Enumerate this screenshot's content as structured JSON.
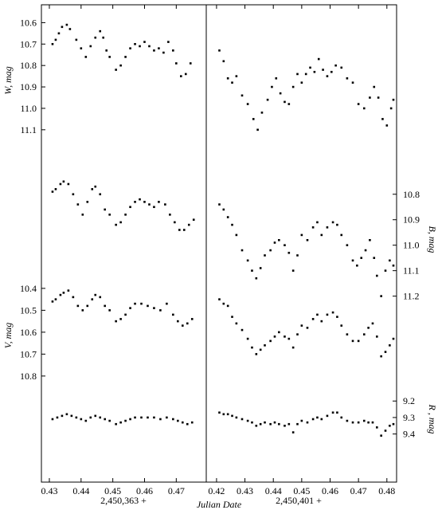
{
  "chart_data": {
    "type": "scatter",
    "xlabel": "Julian Date",
    "panels": [
      {
        "name": "left",
        "date_offset": "2,450,363 +",
        "xlim": [
          0.4285,
          0.4782
        ],
        "xticks": [
          "0.43",
          "0.44",
          "0.45",
          "0.46",
          "0.47"
        ]
      },
      {
        "name": "right",
        "date_offset": "2,450,401 +",
        "xlim": [
          0.4175,
          0.4823
        ],
        "xticks": [
          "0.42",
          "0.43",
          "0.44",
          "0.45",
          "0.46",
          "0.47",
          "0.48"
        ]
      }
    ],
    "series": [
      {
        "name": "W",
        "ylabel": "W, mag",
        "axis_side": "left",
        "ylim": [
          10.565,
          11.175
        ],
        "yticks": [
          "10.6",
          "10.7",
          "10.8",
          "10.9",
          "11.0",
          "11.1"
        ],
        "left": [
          [
            0.431,
            10.7
          ],
          [
            0.432,
            10.68
          ],
          [
            0.433,
            10.65
          ],
          [
            0.434,
            10.62
          ],
          [
            0.4355,
            10.61
          ],
          [
            0.4365,
            10.63
          ],
          [
            0.4385,
            10.68
          ],
          [
            0.44,
            10.72
          ],
          [
            0.4415,
            10.76
          ],
          [
            0.443,
            10.71
          ],
          [
            0.4445,
            10.67
          ],
          [
            0.446,
            10.64
          ],
          [
            0.447,
            10.67
          ],
          [
            0.448,
            10.73
          ],
          [
            0.449,
            10.76
          ],
          [
            0.451,
            10.82
          ],
          [
            0.4525,
            10.8
          ],
          [
            0.454,
            10.76
          ],
          [
            0.4555,
            10.72
          ],
          [
            0.457,
            10.7
          ],
          [
            0.4585,
            10.71
          ],
          [
            0.46,
            10.69
          ],
          [
            0.4615,
            10.71
          ],
          [
            0.463,
            10.73
          ],
          [
            0.4645,
            10.72
          ],
          [
            0.466,
            10.74
          ],
          [
            0.4675,
            10.69
          ],
          [
            0.469,
            10.73
          ],
          [
            0.47,
            10.79
          ],
          [
            0.4715,
            10.85
          ],
          [
            0.473,
            10.84
          ],
          [
            0.4745,
            10.79
          ]
        ],
        "right": [
          [
            0.421,
            10.73
          ],
          [
            0.4225,
            10.78
          ],
          [
            0.424,
            10.86
          ],
          [
            0.4255,
            10.88
          ],
          [
            0.427,
            10.85
          ],
          [
            0.429,
            10.94
          ],
          [
            0.431,
            10.98
          ],
          [
            0.433,
            11.05
          ],
          [
            0.4345,
            11.1
          ],
          [
            0.436,
            11.02
          ],
          [
            0.438,
            10.96
          ],
          [
            0.4395,
            10.9
          ],
          [
            0.441,
            10.86
          ],
          [
            0.4425,
            10.93
          ],
          [
            0.444,
            10.97
          ],
          [
            0.4455,
            10.98
          ],
          [
            0.447,
            10.9
          ],
          [
            0.4485,
            10.84
          ],
          [
            0.45,
            10.88
          ],
          [
            0.4515,
            10.84
          ],
          [
            0.453,
            10.81
          ],
          [
            0.4545,
            10.83
          ],
          [
            0.456,
            10.77
          ],
          [
            0.4575,
            10.82
          ],
          [
            0.459,
            10.85
          ],
          [
            0.4605,
            10.83
          ],
          [
            0.462,
            10.8
          ],
          [
            0.464,
            10.81
          ],
          [
            0.466,
            10.86
          ],
          [
            0.468,
            10.88
          ],
          [
            0.47,
            10.98
          ],
          [
            0.472,
            11.0
          ],
          [
            0.474,
            10.95
          ],
          [
            0.4755,
            10.9
          ],
          [
            0.477,
            10.95
          ],
          [
            0.4785,
            11.05
          ],
          [
            0.48,
            11.08
          ],
          [
            0.4815,
            11.0
          ],
          [
            0.4823,
            10.96
          ]
        ]
      },
      {
        "name": "B",
        "ylabel": "B, mag",
        "axis_side": "right",
        "ylim": [
          10.71,
          11.245
        ],
        "yticks": [
          "10.8",
          "10.9",
          "11.0",
          "11.1",
          "11.2"
        ],
        "left": [
          [
            0.431,
            10.79
          ],
          [
            0.432,
            10.78
          ],
          [
            0.4335,
            10.76
          ],
          [
            0.4345,
            10.75
          ],
          [
            0.436,
            10.76
          ],
          [
            0.4375,
            10.8
          ],
          [
            0.439,
            10.84
          ],
          [
            0.4405,
            10.88
          ],
          [
            0.442,
            10.83
          ],
          [
            0.4435,
            10.78
          ],
          [
            0.4445,
            10.77
          ],
          [
            0.446,
            10.8
          ],
          [
            0.4475,
            10.86
          ],
          [
            0.449,
            10.88
          ],
          [
            0.451,
            10.92
          ],
          [
            0.4525,
            10.91
          ],
          [
            0.454,
            10.88
          ],
          [
            0.4555,
            10.85
          ],
          [
            0.457,
            10.83
          ],
          [
            0.4585,
            10.82
          ],
          [
            0.46,
            10.83
          ],
          [
            0.4615,
            10.84
          ],
          [
            0.463,
            10.85
          ],
          [
            0.4645,
            10.83
          ],
          [
            0.4665,
            10.84
          ],
          [
            0.468,
            10.88
          ],
          [
            0.4695,
            10.91
          ],
          [
            0.471,
            10.94
          ],
          [
            0.4725,
            10.94
          ],
          [
            0.474,
            10.92
          ],
          [
            0.4755,
            10.9
          ]
        ],
        "right": [
          [
            0.421,
            10.84
          ],
          [
            0.4225,
            10.86
          ],
          [
            0.424,
            10.89
          ],
          [
            0.4255,
            10.92
          ],
          [
            0.427,
            10.96
          ],
          [
            0.429,
            11.02
          ],
          [
            0.431,
            11.06
          ],
          [
            0.4325,
            11.1
          ],
          [
            0.434,
            11.13
          ],
          [
            0.4355,
            11.09
          ],
          [
            0.437,
            11.04
          ],
          [
            0.439,
            11.02
          ],
          [
            0.4405,
            10.99
          ],
          [
            0.442,
            10.98
          ],
          [
            0.444,
            11.0
          ],
          [
            0.4455,
            11.03
          ],
          [
            0.447,
            11.1
          ],
          [
            0.4485,
            11.04
          ],
          [
            0.45,
            10.96
          ],
          [
            0.452,
            10.98
          ],
          [
            0.454,
            10.93
          ],
          [
            0.4555,
            10.91
          ],
          [
            0.457,
            10.96
          ],
          [
            0.459,
            10.93
          ],
          [
            0.461,
            10.91
          ],
          [
            0.4625,
            10.92
          ],
          [
            0.464,
            10.96
          ],
          [
            0.466,
            11.0
          ],
          [
            0.468,
            11.06
          ],
          [
            0.4695,
            11.08
          ],
          [
            0.471,
            11.05
          ],
          [
            0.4725,
            11.02
          ],
          [
            0.474,
            10.98
          ],
          [
            0.4755,
            11.05
          ],
          [
            0.4765,
            11.12
          ],
          [
            0.478,
            11.2
          ],
          [
            0.4795,
            11.1
          ],
          [
            0.481,
            11.06
          ],
          [
            0.4823,
            11.08
          ]
        ]
      },
      {
        "name": "V",
        "ylabel": "V, mag",
        "axis_side": "left",
        "ylim": [
          10.375,
          10.855
        ],
        "yticks": [
          "10.4",
          "10.5",
          "10.6",
          "10.7",
          "10.8"
        ],
        "left": [
          [
            0.431,
            10.46
          ],
          [
            0.432,
            10.45
          ],
          [
            0.4335,
            10.43
          ],
          [
            0.4345,
            10.42
          ],
          [
            0.436,
            10.41
          ],
          [
            0.4375,
            10.44
          ],
          [
            0.439,
            10.48
          ],
          [
            0.4405,
            10.5
          ],
          [
            0.442,
            10.48
          ],
          [
            0.4435,
            10.45
          ],
          [
            0.4445,
            10.43
          ],
          [
            0.446,
            10.44
          ],
          [
            0.4475,
            10.48
          ],
          [
            0.449,
            10.5
          ],
          [
            0.451,
            10.55
          ],
          [
            0.4525,
            10.54
          ],
          [
            0.454,
            10.52
          ],
          [
            0.4555,
            10.49
          ],
          [
            0.457,
            10.47
          ],
          [
            0.459,
            10.47
          ],
          [
            0.461,
            10.48
          ],
          [
            0.463,
            10.49
          ],
          [
            0.465,
            10.5
          ],
          [
            0.467,
            10.47
          ],
          [
            0.469,
            10.52
          ],
          [
            0.4705,
            10.55
          ],
          [
            0.472,
            10.57
          ],
          [
            0.4735,
            10.56
          ],
          [
            0.475,
            10.54
          ]
        ],
        "right": [
          [
            0.421,
            10.45
          ],
          [
            0.4225,
            10.47
          ],
          [
            0.424,
            10.48
          ],
          [
            0.4255,
            10.53
          ],
          [
            0.427,
            10.56
          ],
          [
            0.429,
            10.59
          ],
          [
            0.431,
            10.63
          ],
          [
            0.4325,
            10.67
          ],
          [
            0.434,
            10.7
          ],
          [
            0.4355,
            10.68
          ],
          [
            0.437,
            10.66
          ],
          [
            0.439,
            10.64
          ],
          [
            0.4405,
            10.62
          ],
          [
            0.442,
            10.6
          ],
          [
            0.444,
            10.62
          ],
          [
            0.4455,
            10.63
          ],
          [
            0.447,
            10.67
          ],
          [
            0.4485,
            10.61
          ],
          [
            0.45,
            10.57
          ],
          [
            0.452,
            10.58
          ],
          [
            0.454,
            10.54
          ],
          [
            0.4555,
            10.52
          ],
          [
            0.457,
            10.55
          ],
          [
            0.459,
            10.52
          ],
          [
            0.461,
            10.51
          ],
          [
            0.4625,
            10.53
          ],
          [
            0.464,
            10.57
          ],
          [
            0.466,
            10.61
          ],
          [
            0.468,
            10.64
          ],
          [
            0.47,
            10.64
          ],
          [
            0.472,
            10.61
          ],
          [
            0.4735,
            10.58
          ],
          [
            0.475,
            10.56
          ],
          [
            0.4765,
            10.62
          ],
          [
            0.478,
            10.71
          ],
          [
            0.4795,
            10.69
          ],
          [
            0.481,
            10.66
          ],
          [
            0.4823,
            10.63
          ]
        ]
      },
      {
        "name": "R",
        "ylabel": "R , mag",
        "axis_side": "right",
        "ylim": [
          9.165,
          9.455
        ],
        "yticks": [
          "9.2",
          "9.3",
          "9.4"
        ],
        "left": [
          [
            0.431,
            9.31
          ],
          [
            0.4325,
            9.3
          ],
          [
            0.434,
            9.29
          ],
          [
            0.4355,
            9.28
          ],
          [
            0.437,
            9.29
          ],
          [
            0.4385,
            9.3
          ],
          [
            0.44,
            9.31
          ],
          [
            0.4415,
            9.32
          ],
          [
            0.443,
            9.3
          ],
          [
            0.4445,
            9.29
          ],
          [
            0.446,
            9.3
          ],
          [
            0.4475,
            9.31
          ],
          [
            0.449,
            9.32
          ],
          [
            0.451,
            9.34
          ],
          [
            0.4525,
            9.33
          ],
          [
            0.454,
            9.32
          ],
          [
            0.4555,
            9.31
          ],
          [
            0.457,
            9.3
          ],
          [
            0.459,
            9.3
          ],
          [
            0.461,
            9.3
          ],
          [
            0.463,
            9.3
          ],
          [
            0.465,
            9.31
          ],
          [
            0.467,
            9.3
          ],
          [
            0.469,
            9.31
          ],
          [
            0.4705,
            9.32
          ],
          [
            0.472,
            9.33
          ],
          [
            0.4735,
            9.34
          ],
          [
            0.475,
            9.33
          ]
        ],
        "right": [
          [
            0.421,
            9.27
          ],
          [
            0.4225,
            9.28
          ],
          [
            0.424,
            9.28
          ],
          [
            0.4255,
            9.29
          ],
          [
            0.427,
            9.3
          ],
          [
            0.429,
            9.31
          ],
          [
            0.431,
            9.32
          ],
          [
            0.4325,
            9.33
          ],
          [
            0.434,
            9.35
          ],
          [
            0.4355,
            9.34
          ],
          [
            0.437,
            9.33
          ],
          [
            0.439,
            9.34
          ],
          [
            0.4405,
            9.33
          ],
          [
            0.442,
            9.34
          ],
          [
            0.444,
            9.35
          ],
          [
            0.4455,
            9.34
          ],
          [
            0.447,
            9.39
          ],
          [
            0.4485,
            9.34
          ],
          [
            0.45,
            9.32
          ],
          [
            0.452,
            9.33
          ],
          [
            0.454,
            9.31
          ],
          [
            0.4555,
            9.3
          ],
          [
            0.457,
            9.31
          ],
          [
            0.459,
            9.29
          ],
          [
            0.461,
            9.27
          ],
          [
            0.4625,
            9.27
          ],
          [
            0.464,
            9.3
          ],
          [
            0.466,
            9.32
          ],
          [
            0.468,
            9.33
          ],
          [
            0.47,
            9.33
          ],
          [
            0.472,
            9.32
          ],
          [
            0.4735,
            9.33
          ],
          [
            0.475,
            9.33
          ],
          [
            0.4765,
            9.36
          ],
          [
            0.478,
            9.41
          ],
          [
            0.4795,
            9.38
          ],
          [
            0.481,
            9.35
          ],
          [
            0.4823,
            9.34
          ]
        ]
      }
    ]
  }
}
